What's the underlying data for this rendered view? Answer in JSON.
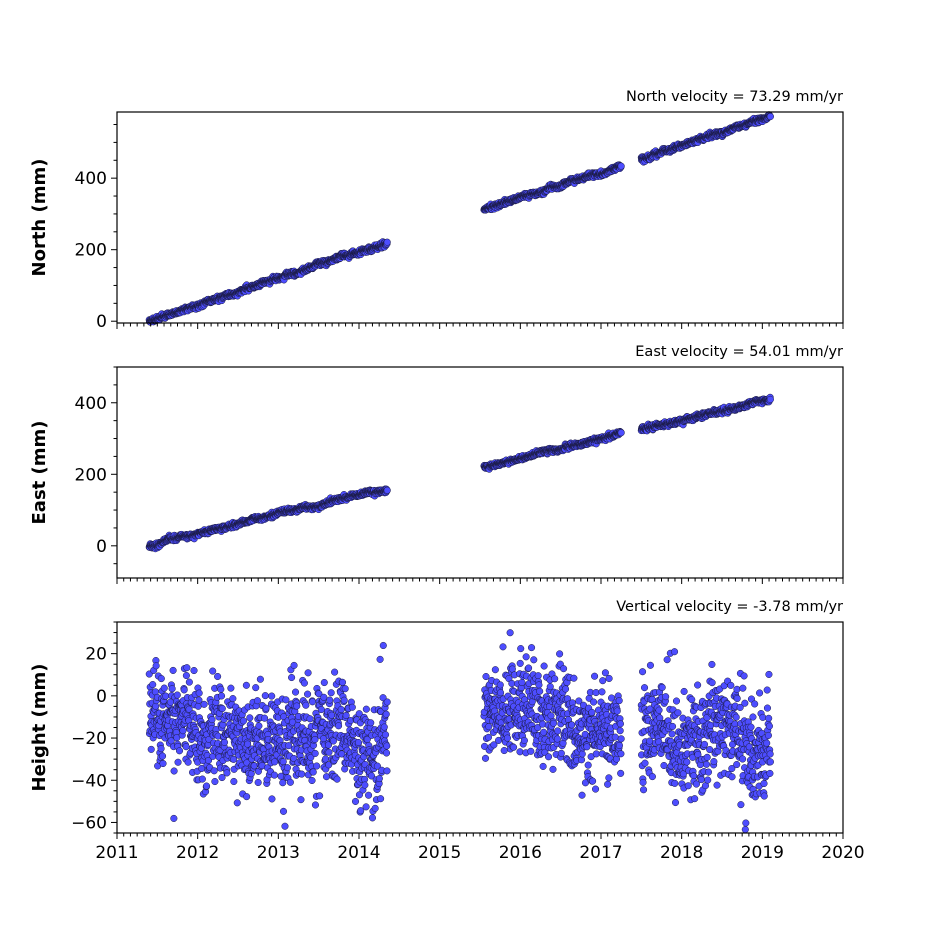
{
  "colors": {
    "marker_fill": "#4d4dff",
    "marker_edge": "#1a1a40",
    "axes": "#000000"
  },
  "x_axis": {
    "ticks": [
      2011,
      2012,
      2013,
      2014,
      2015,
      2016,
      2017,
      2018,
      2019,
      2020
    ],
    "tick_labels": [
      "2011",
      "2012",
      "2013",
      "2014",
      "2015",
      "2016",
      "2017",
      "2018",
      "2019",
      "2020"
    ]
  },
  "chart_data": [
    {
      "type": "scatter",
      "title": "North velocity = 73.29 mm/yr",
      "xlabel": "",
      "ylabel": "North (mm)",
      "xlim": [
        2011,
        2020
      ],
      "ylim": [
        -5,
        585
      ],
      "yticks": [
        0,
        200,
        400
      ],
      "ytick_labels": [
        "0",
        "200",
        "400"
      ],
      "velocity_mm_per_yr": 73.29,
      "segments": [
        {
          "x_start": 2011.4,
          "x_end": 2014.35,
          "y_start": 0,
          "y_end": 220
        },
        {
          "x_start": 2015.55,
          "x_end": 2017.25,
          "y_start": 312,
          "y_end": 435
        },
        {
          "x_start": 2017.5,
          "x_end": 2019.1,
          "y_start": 452,
          "y_end": 575
        }
      ]
    },
    {
      "type": "scatter",
      "title": "East velocity = 54.01 mm/yr",
      "xlabel": "",
      "ylabel": "East (mm)",
      "xlim": [
        2011,
        2020
      ],
      "ylim": [
        -90,
        500
      ],
      "yticks": [
        0,
        200,
        400
      ],
      "ytick_labels": [
        "0",
        "200",
        "400"
      ],
      "velocity_mm_per_yr": 54.01,
      "segments": [
        {
          "x_start": 2011.4,
          "x_end": 2014.35,
          "y_start": 0,
          "y_end": 160
        },
        {
          "x_start": 2015.55,
          "x_end": 2017.25,
          "y_start": 222,
          "y_end": 312
        },
        {
          "x_start": 2017.5,
          "x_end": 2019.1,
          "y_start": 325,
          "y_end": 408
        }
      ]
    },
    {
      "type": "scatter",
      "title": "Vertical velocity = -3.78 mm/yr",
      "xlabel": "",
      "ylabel": "Height (mm)",
      "xlim": [
        2011,
        2020
      ],
      "ylim": [
        -65,
        35
      ],
      "yticks": [
        -60,
        -40,
        -20,
        0,
        20
      ],
      "ytick_labels": [
        "−60",
        "−40",
        "−20",
        "0",
        "20"
      ],
      "velocity_mm_per_yr": -3.78,
      "segments": [
        {
          "x_start": 2011.4,
          "x_end": 2014.35,
          "y_start": -14,
          "y_end": -22
        },
        {
          "x_start": 2015.55,
          "x_end": 2017.25,
          "y_start": -10,
          "y_end": -12
        },
        {
          "x_start": 2017.5,
          "x_end": 2019.1,
          "y_start": -18,
          "y_end": -22
        }
      ]
    }
  ]
}
